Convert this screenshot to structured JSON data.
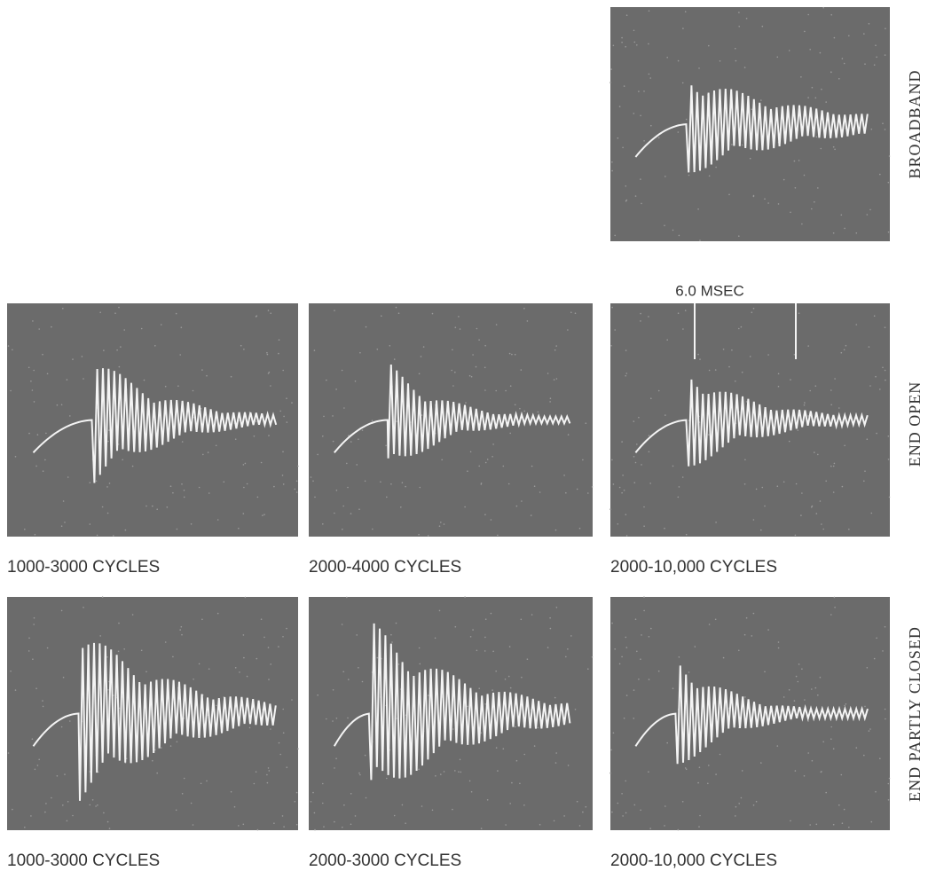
{
  "side_labels": {
    "broadband": "BROADBAND",
    "end_open": "END OPEN",
    "end_partly_closed": "END PARTLY CLOSED"
  },
  "scale_label": "6.0 MSEC",
  "panels": {
    "end_open": [
      "1000-3000 CYCLES",
      "2000-4000 CYCLES",
      "2000-10,000 CYCLES"
    ],
    "end_partly_closed": [
      "1000-3000 CYCLES",
      "2000-3000 CYCLES",
      "2000-10,000 CYCLES"
    ]
  }
}
